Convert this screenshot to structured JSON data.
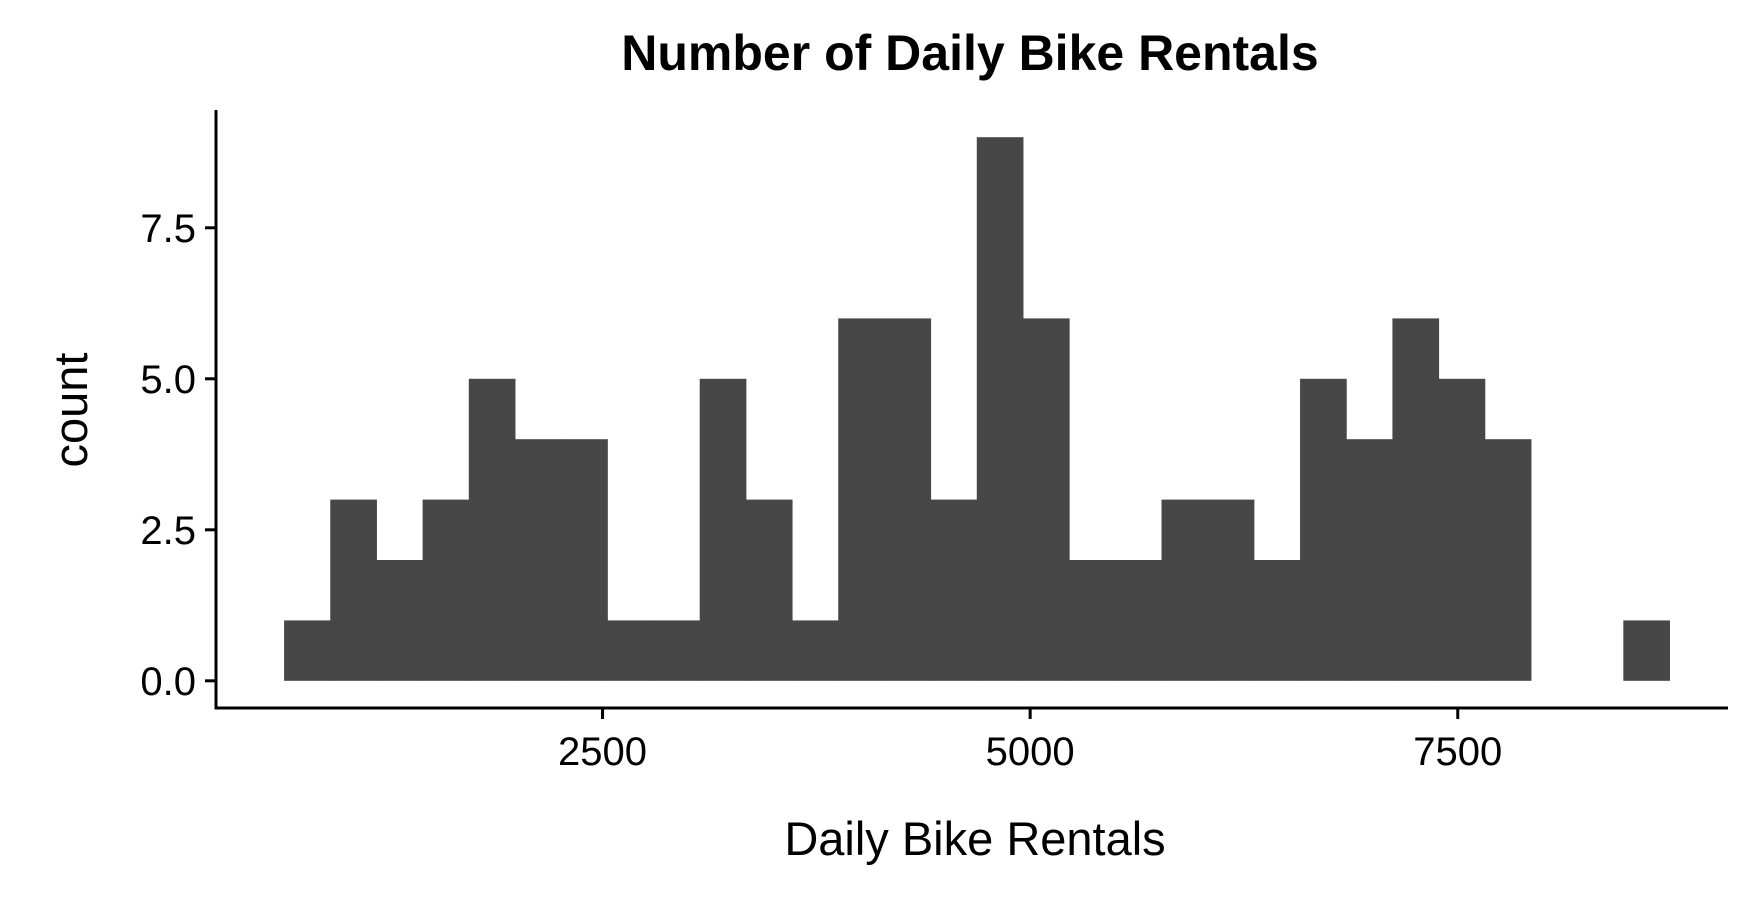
{
  "chart_data": {
    "type": "bar",
    "title": "Number of Daily Bike Rentals",
    "xlabel": "Daily Bike Rentals",
    "ylabel": "count",
    "bar_color": "#474747",
    "bin_width": 270,
    "bin_starts": [
      638,
      908,
      1178,
      1448,
      1718,
      1988,
      2258,
      2528,
      2798,
      3068,
      3338,
      3608,
      3878,
      4148,
      4418,
      4688,
      4958,
      5228,
      5498,
      5768,
      6038,
      6308,
      6578,
      6848,
      7118,
      7388,
      7658,
      7928,
      8198,
      8468
    ],
    "values": [
      1,
      3,
      2,
      3,
      5,
      4,
      4,
      1,
      1,
      5,
      3,
      1,
      6,
      6,
      3,
      9,
      6,
      2,
      2,
      3,
      3,
      2,
      5,
      4,
      6,
      5,
      4,
      0,
      0,
      1
    ],
    "xlim": [
      240,
      9080
    ],
    "ylim": [
      -0.45,
      9.45
    ],
    "x_ticks": [
      2500,
      5000,
      7500
    ],
    "x_tick_labels": [
      "2500",
      "5000",
      "7500"
    ],
    "y_ticks": [
      0,
      2.5,
      5,
      7.5
    ],
    "y_tick_labels": [
      "0.0",
      "2.5",
      "5.0",
      "7.5"
    ],
    "grid": false,
    "legend": "none"
  }
}
